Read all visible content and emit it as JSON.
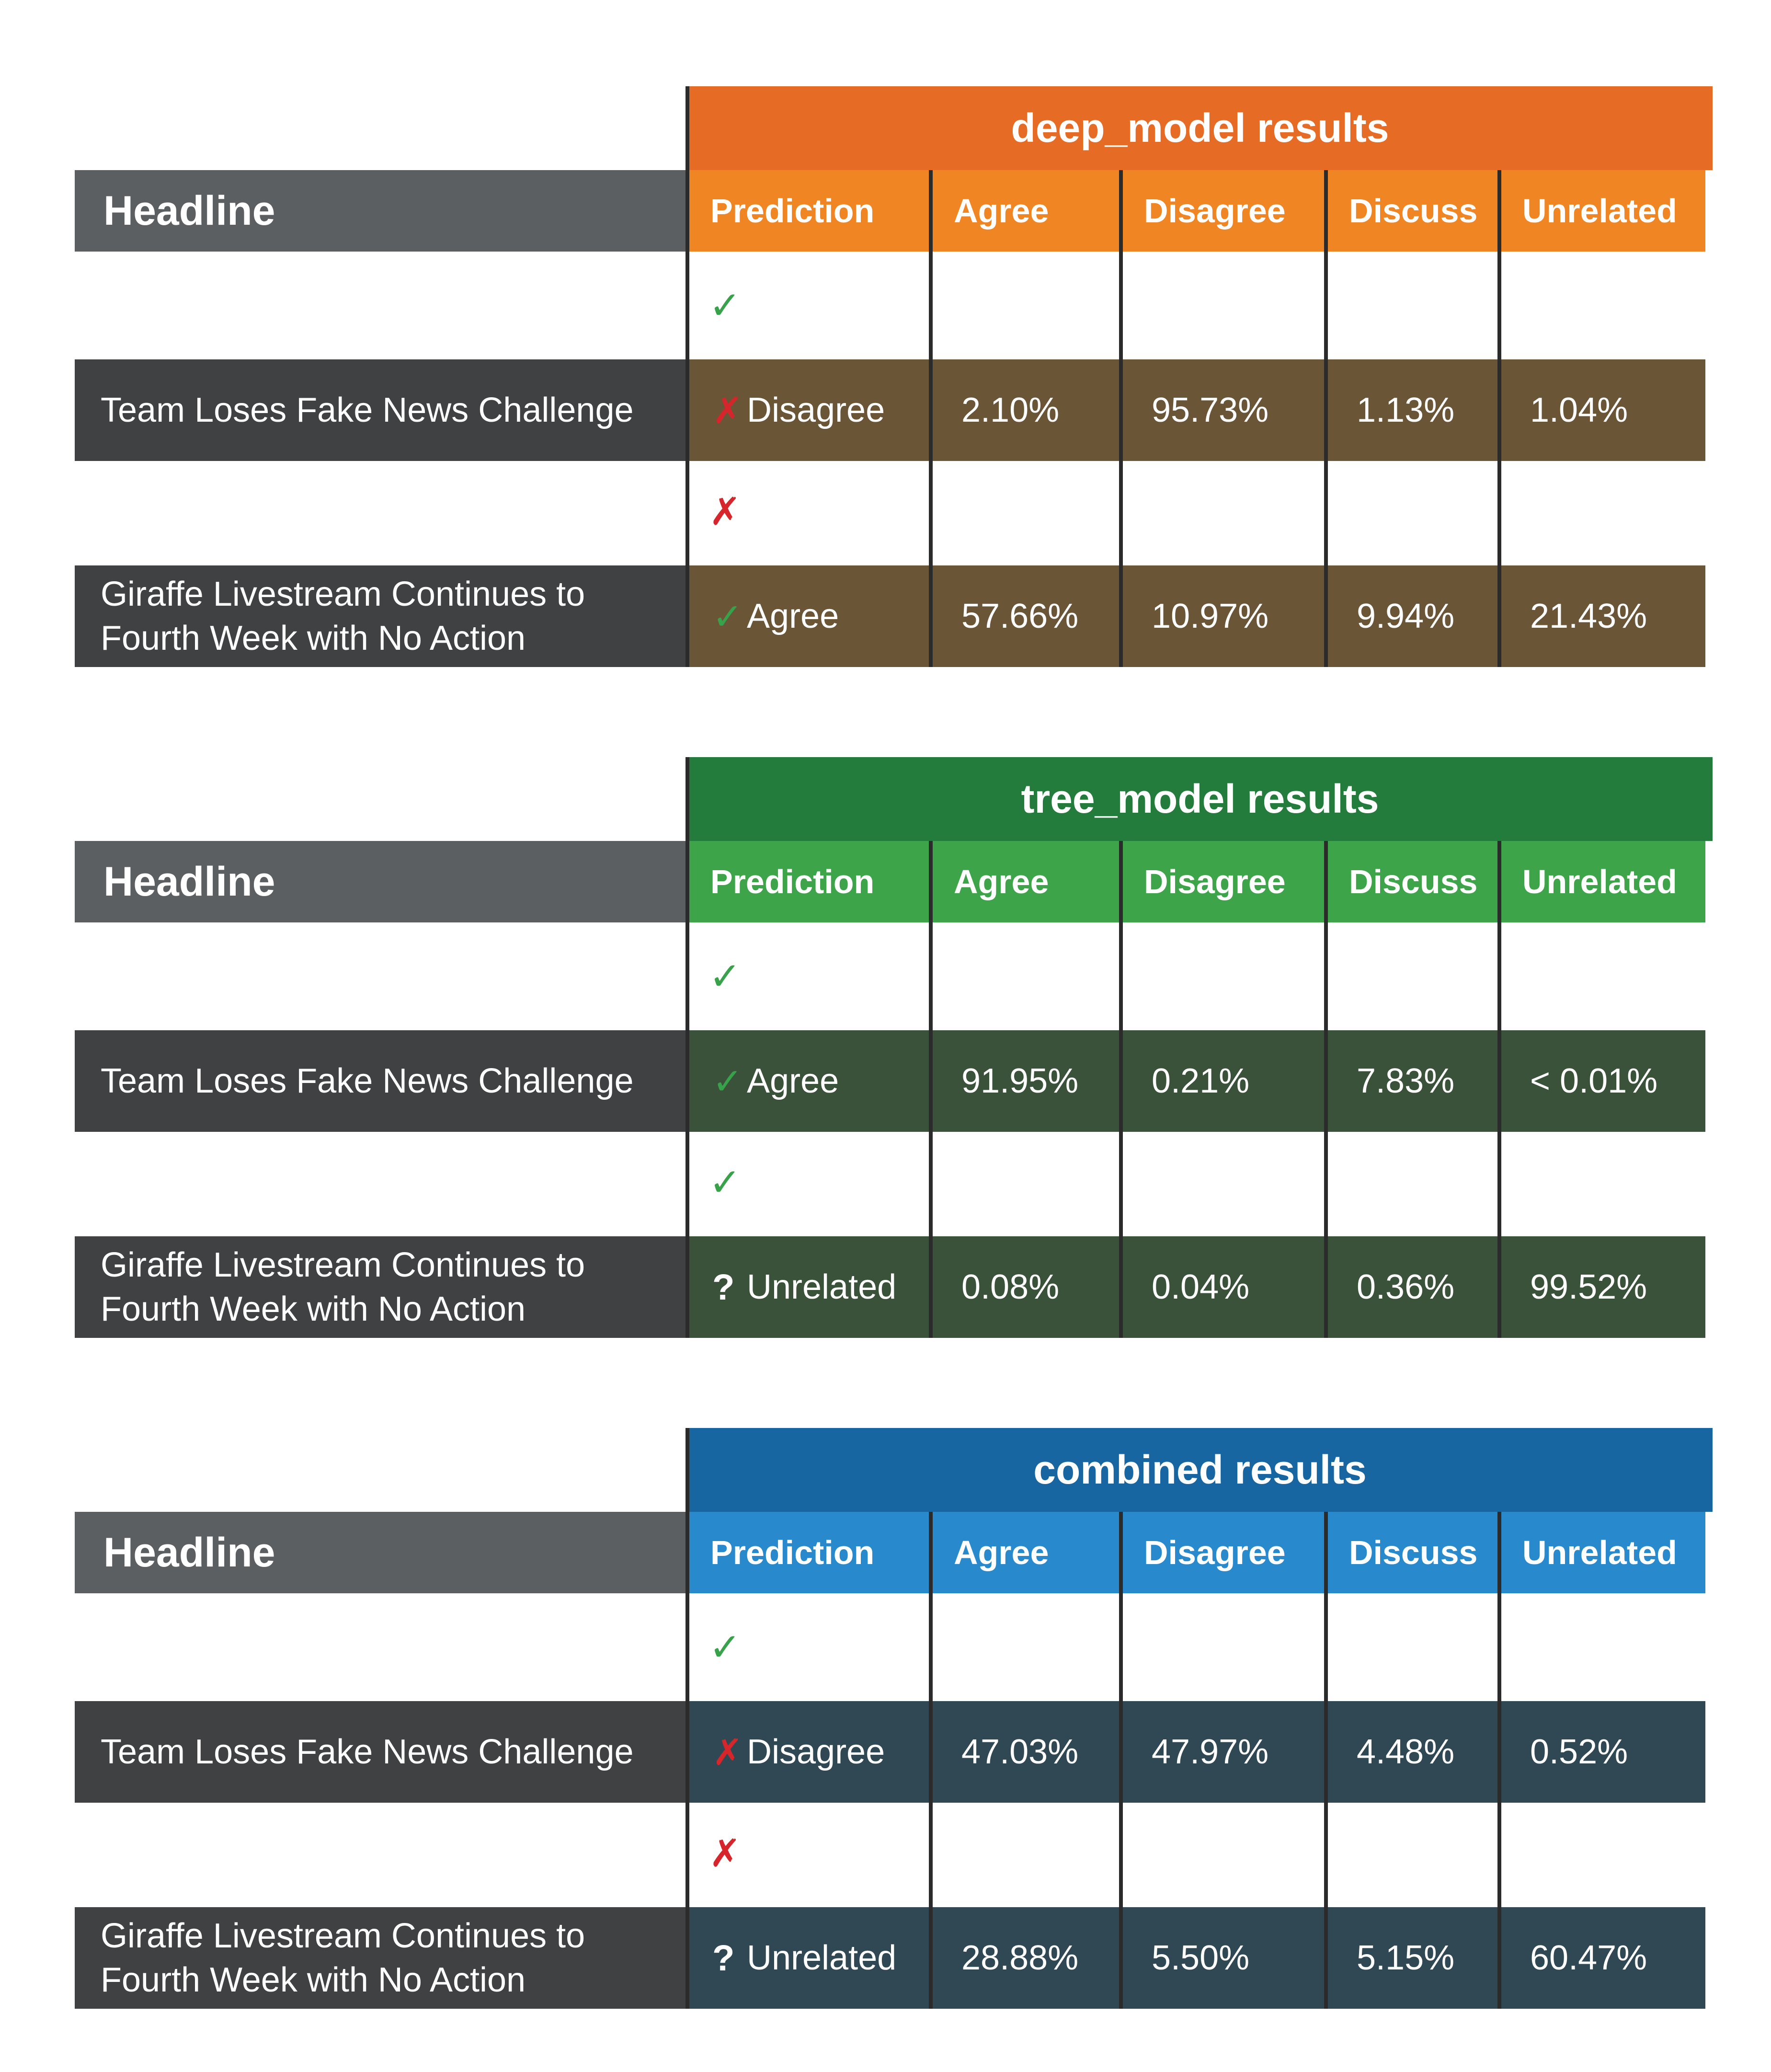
{
  "chart_data": [
    {
      "type": "table",
      "title": "deep_model results",
      "header_label": "Headline",
      "columns": [
        "Prediction",
        "Agree",
        "Disagree",
        "Discuss",
        "Unrelated"
      ],
      "rows": [
        {
          "headline_lines": [
            "Team Loses Fake News Challenge"
          ],
          "ground_truth_mark": "✓",
          "ground_truth_color": "#37a24a",
          "prediction_mark": "✗",
          "prediction_mark_color": "#d6262c",
          "prediction": "Disagree",
          "values": [
            "2.10%",
            "95.73%",
            "1.13%",
            "1.04%"
          ]
        },
        {
          "headline_lines": [
            "Giraffe Livestream Continues to",
            "Fourth Week with No Action"
          ],
          "ground_truth_mark": "✗",
          "ground_truth_color": "#d6262c",
          "prediction_mark": "✓",
          "prediction_mark_color": "#37a24a",
          "prediction": "Agree",
          "values": [
            "57.66%",
            "10.97%",
            "9.94%",
            "21.43%"
          ]
        }
      ],
      "colors": {
        "title": "#e66b25",
        "header": "#ef8523",
        "band": "#6a5537"
      }
    },
    {
      "type": "table",
      "title": "tree_model results",
      "header_label": "Headline",
      "columns": [
        "Prediction",
        "Agree",
        "Disagree",
        "Discuss",
        "Unrelated"
      ],
      "rows": [
        {
          "headline_lines": [
            "Team Loses Fake News Challenge"
          ],
          "ground_truth_mark": "✓",
          "ground_truth_color": "#37a24a",
          "prediction_mark": "✓",
          "prediction_mark_color": "#37a24a",
          "prediction": "Agree",
          "values": [
            "91.95%",
            "0.21%",
            "7.83%",
            "< 0.01%"
          ]
        },
        {
          "headline_lines": [
            "Giraffe Livestream Continues to",
            "Fourth Week with No Action"
          ],
          "ground_truth_mark": "✓",
          "ground_truth_color": "#37a24a",
          "prediction_mark": "?",
          "prediction_mark_color": "#ffffff",
          "prediction": "Unrelated",
          "values": [
            "0.08%",
            "0.04%",
            "0.36%",
            "99.52%"
          ]
        }
      ],
      "colors": {
        "title": "#237c3c",
        "header": "#3ea449",
        "band": "#3a5239"
      }
    },
    {
      "type": "table",
      "title": "combined results",
      "header_label": "Headline",
      "columns": [
        "Prediction",
        "Agree",
        "Disagree",
        "Discuss",
        "Unrelated"
      ],
      "rows": [
        {
          "headline_lines": [
            "Team Loses Fake News Challenge"
          ],
          "ground_truth_mark": "✓",
          "ground_truth_color": "#37a24a",
          "prediction_mark": "✗",
          "prediction_mark_color": "#d6262c",
          "prediction": "Disagree",
          "values": [
            "47.03%",
            "47.97%",
            "4.48%",
            "0.52%"
          ]
        },
        {
          "headline_lines": [
            "Giraffe Livestream Continues to",
            "Fourth Week with No Action"
          ],
          "ground_truth_mark": "✗",
          "ground_truth_color": "#d6262c",
          "prediction_mark": "?",
          "prediction_mark_color": "#ffffff",
          "prediction": "Unrelated",
          "values": [
            "28.88%",
            "5.50%",
            "5.15%",
            "60.47%"
          ]
        }
      ],
      "colors": {
        "title": "#1766a1",
        "header": "#288acc",
        "band": "#2f4853"
      }
    }
  ]
}
